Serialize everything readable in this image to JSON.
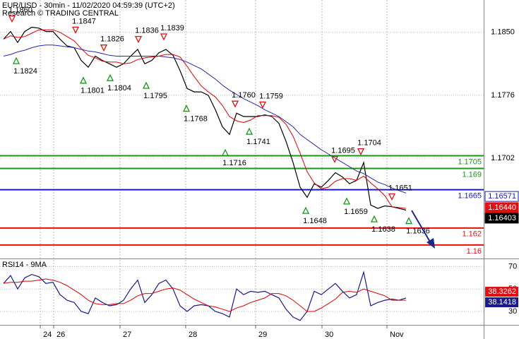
{
  "chart_data": [
    {
      "type": "line",
      "title": "EUR/USD - 30min - 11/02/2020 04:59:39 (UTC+2)",
      "subtitle": "Research © TRADING CENTRAL",
      "x": [
        0,
        1,
        2,
        3,
        4,
        5,
        6,
        7,
        8,
        9,
        10,
        11,
        12,
        13,
        14,
        15,
        16,
        17,
        18,
        19,
        20,
        21,
        22,
        23,
        24,
        25,
        26,
        27,
        28,
        29,
        30,
        31,
        32,
        33,
        34,
        35,
        36,
        37,
        38,
        39,
        40,
        41,
        42,
        43,
        44,
        45,
        46,
        47,
        48,
        49,
        50,
        51,
        52,
        53,
        54,
        55,
        56,
        57
      ],
      "series": [
        {
          "color": "#000000",
          "values": [
            1.1842,
            1.1851,
            1.1838,
            1.1851,
            1.1856,
            1.1855,
            1.1851,
            1.1851,
            1.1842,
            1.1834,
            1.1832,
            1.1817,
            1.1809,
            1.1822,
            1.1817,
            1.1813,
            1.1809,
            1.1813,
            1.1822,
            1.183,
            1.1813,
            1.1817,
            1.1826,
            1.183,
            1.1823,
            1.1805,
            1.1784,
            1.178,
            1.178,
            1.1776,
            1.1759,
            1.1739,
            1.173,
            1.1755,
            1.1751,
            1.1751,
            1.1751,
            1.1753,
            1.1751,
            1.1743,
            1.1722,
            1.1697,
            1.1668,
            1.1656,
            1.1672,
            1.1668,
            1.1676,
            1.1685,
            1.168,
            1.1672,
            1.1676,
            1.1697,
            1.1647,
            1.1643,
            1.1646,
            1.1645,
            1.1643,
            1.1641
          ]
        },
        {
          "color": "#e00000",
          "values": [
            1.1842,
            1.1846,
            1.1844,
            1.1845,
            1.1849,
            1.1853,
            1.1853,
            1.1853,
            1.185,
            1.1845,
            1.184,
            1.1831,
            1.1823,
            1.182,
            1.1816,
            1.1815,
            1.1815,
            1.1813,
            1.1814,
            1.1818,
            1.182,
            1.1821,
            1.1822,
            1.1824,
            1.1824,
            1.1821,
            1.181,
            1.1798,
            1.1787,
            1.178,
            1.1774,
            1.1764,
            1.1751,
            1.1746,
            1.1744,
            1.1747,
            1.1752,
            1.1752,
            1.1752,
            1.175,
            1.1742,
            1.1728,
            1.1708,
            1.1686,
            1.1673,
            1.1666,
            1.1668,
            1.1675,
            1.1678,
            1.1678,
            1.1676,
            1.1681,
            1.1673,
            1.1666,
            1.1658,
            1.1645,
            1.1644,
            1.1643
          ]
        },
        {
          "color": "#2828a8",
          "values": [
            1.1822,
            1.1824,
            1.1827,
            1.1829,
            1.1832,
            1.1834,
            1.1835,
            1.1835,
            1.1834,
            1.1833,
            1.1832,
            1.183,
            1.1828,
            1.1827,
            1.1825,
            1.1823,
            1.1822,
            1.1822,
            1.1822,
            1.1822,
            1.1822,
            1.1822,
            1.1822,
            1.1821,
            1.182,
            1.1818,
            1.1815,
            1.1811,
            1.1807,
            1.1801,
            1.1795,
            1.1788,
            1.1782,
            1.1777,
            1.1772,
            1.1768,
            1.1764,
            1.1759,
            1.1755,
            1.1751,
            1.1745,
            1.1739,
            1.173,
            1.1724,
            1.1718,
            1.1712,
            1.1707,
            1.1702,
            1.1697,
            1.1692,
            1.1687,
            1.1684,
            1.1679,
            1.1674,
            1.1671,
            1.1667,
            1.1664,
            1.1661
          ]
        }
      ],
      "xlim": [
        -0.5,
        68
      ],
      "xticks": [
        {
          "value": 5.2,
          "label": "24"
        },
        {
          "value": 7.1,
          "label": "26"
        },
        {
          "value": 16.5,
          "label": "27"
        },
        {
          "value": 25.8,
          "label": "28"
        },
        {
          "value": 35.7,
          "label": "29"
        },
        {
          "value": 45.1,
          "label": "30"
        },
        {
          "value": 54.3,
          "label": "Nov"
        }
      ],
      "ylim": [
        1.1585,
        1.1888
      ],
      "yticks": [
        {
          "value": 1.185,
          "label": "1.1850"
        },
        1.1776,
        1.1702
      ],
      "grid": true,
      "levels": [
        {
          "value": 1.1705,
          "color": "#179917"
        },
        {
          "value": 1.169,
          "color": "#179917"
        },
        {
          "value": 1.1665,
          "color": "#1818c8"
        },
        {
          "value": 1.162,
          "color": "#e01010"
        },
        {
          "value": 1.16,
          "color": "#e01010"
        }
      ],
      "annotations": [
        {
          "value": 1.186,
          "label": "1.1860",
          "x": 1.2,
          "marker": "down"
        },
        {
          "value": 1.1847,
          "x": 10.2,
          "marker": "down"
        },
        {
          "value": 1.1824,
          "x": 1.8,
          "marker": "up"
        },
        {
          "value": 1.1826,
          "x": 14.2,
          "marker": "down"
        },
        {
          "value": 1.1801,
          "x": 11.3,
          "marker": "up"
        },
        {
          "value": 1.1804,
          "x": 15.1,
          "marker": "up"
        },
        {
          "value": 1.1836,
          "x": 19.1,
          "marker": "down"
        },
        {
          "value": 1.1839,
          "x": 22.7,
          "marker": "down"
        },
        {
          "value": 1.1795,
          "x": 20.2,
          "marker": "up"
        },
        {
          "value": 1.1768,
          "x": 25.9,
          "marker": "up"
        },
        {
          "value": 1.176,
          "label": "1.1760",
          "x": 32.8,
          "marker": "down"
        },
        {
          "value": 1.1759,
          "x": 36.7,
          "marker": "down"
        },
        {
          "value": 1.1741,
          "x": 34.8,
          "marker": "up"
        },
        {
          "value": 1.1716,
          "x": 31.4,
          "marker": "up"
        },
        {
          "value": 1.1695,
          "x": 46.9,
          "marker": "down"
        },
        {
          "value": 1.1704,
          "x": 50.6,
          "marker": "down"
        },
        {
          "value": 1.1648,
          "x": 42.8,
          "marker": "up"
        },
        {
          "value": 1.1659,
          "x": 48.6,
          "marker": "up"
        },
        {
          "value": 1.1651,
          "x": 55.0,
          "marker": "down"
        },
        {
          "value": 1.1638,
          "x": 52.5,
          "marker": "up"
        },
        {
          "value": 1.1636,
          "x": 57.4,
          "marker": "up"
        }
      ],
      "price_labels": [
        {
          "value": 1.16571,
          "color": "#1818c8",
          "style": "outline"
        },
        {
          "value": 1.1644,
          "label": "1.16440",
          "color": "#e01010",
          "style": "filled"
        },
        {
          "value": 1.16403,
          "color": "#000000",
          "style": "filled"
        }
      ]
    },
    {
      "type": "line",
      "title": "RSI14 - 9MA",
      "x": [
        0,
        1,
        2,
        3,
        4,
        5,
        6,
        7,
        8,
        9,
        10,
        11,
        12,
        13,
        14,
        15,
        16,
        17,
        18,
        19,
        20,
        21,
        22,
        23,
        24,
        25,
        26,
        27,
        28,
        29,
        30,
        31,
        32,
        33,
        34,
        35,
        36,
        37,
        38,
        39,
        40,
        41,
        42,
        43,
        44,
        45,
        46,
        47,
        48,
        49,
        50,
        51,
        52,
        53,
        54,
        55,
        56,
        57
      ],
      "series": [
        {
          "color": "#1a1a8c",
          "values": [
            55,
            62,
            50,
            60,
            63,
            61,
            55,
            56,
            45,
            40,
            38,
            30,
            28,
            42,
            38,
            35,
            36,
            40,
            50,
            58,
            38,
            45,
            55,
            58,
            50,
            35,
            30,
            35,
            36,
            35,
            30,
            28,
            25,
            50,
            45,
            48,
            47,
            48,
            45,
            42,
            32,
            25,
            22,
            30,
            48,
            45,
            50,
            55,
            48,
            42,
            45,
            65,
            35,
            38,
            40,
            41,
            40,
            42
          ]
        },
        {
          "color": "#e00000",
          "values": [
            55,
            56,
            56,
            57,
            57,
            58,
            59,
            58,
            56,
            53,
            49,
            45,
            40,
            37,
            36,
            36,
            37,
            37,
            40,
            44,
            46,
            46,
            48,
            50,
            51,
            49,
            45,
            41,
            38,
            35,
            34,
            32,
            30,
            33,
            35,
            38,
            40,
            42,
            46,
            46,
            44,
            40,
            35,
            30,
            30,
            33,
            37,
            41,
            47,
            48,
            47,
            50,
            48,
            46,
            44,
            40,
            40,
            40
          ]
        }
      ],
      "xlim": [
        -0.5,
        68
      ],
      "ylim": [
        18,
        76
      ],
      "yticks": [
        70,
        50,
        30
      ],
      "grid": true,
      "last_labels": [
        {
          "value": 38.3262,
          "color": "#e01010"
        },
        {
          "value": 38.1418,
          "color": "#1a1a8c"
        }
      ]
    }
  ]
}
